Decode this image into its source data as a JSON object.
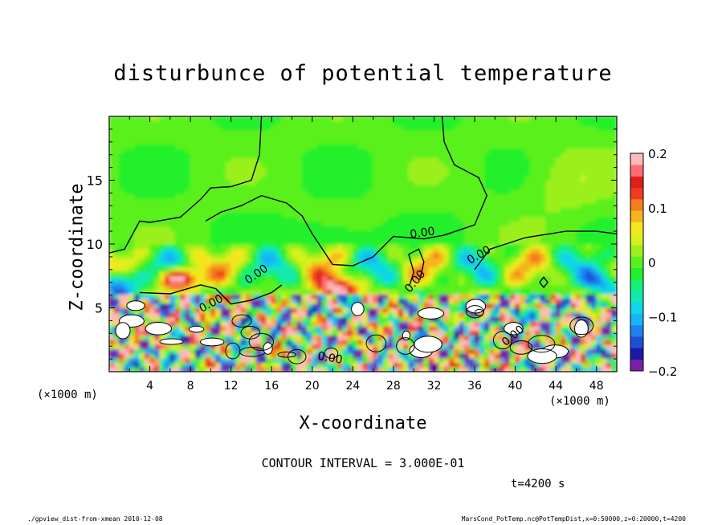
{
  "chart_data": {
    "type": "heatmap",
    "title": "disturbunce of potential temperature",
    "xlabel": "X-coordinate",
    "ylabel": "Z-coordinate",
    "x_unit": "(×1000 m)",
    "y_unit": "(×1000 m)",
    "xlim": [
      0,
      50
    ],
    "ylim": [
      0,
      20
    ],
    "x_ticks": [
      4,
      8,
      12,
      16,
      20,
      24,
      28,
      32,
      36,
      40,
      44,
      48
    ],
    "y_ticks": [
      5,
      10,
      15
    ],
    "colorbar": {
      "range": [
        -0.2,
        0.2
      ],
      "tick_labels": [
        "0.2",
        "0.1",
        "0",
        "−0.1",
        "−0.2"
      ],
      "colors": [
        "#7a1fa8",
        "#1a1aa8",
        "#1e4fd6",
        "#1e82f0",
        "#19b4f5",
        "#0fd6e8",
        "#14e8b0",
        "#14f078",
        "#22f02a",
        "#5af01e",
        "#9bf01e",
        "#d7f01e",
        "#f5e61e",
        "#f5b41e",
        "#f57d1e",
        "#f03c1e",
        "#e11e1e",
        "#ff6e6e",
        "#ffb9b9"
      ]
    },
    "contour_labels": [
      "0.00",
      "0.00",
      "0.00",
      "0.00",
      "0.00",
      "0.00",
      "0.00"
    ],
    "contour_interval_text": "CONTOUR INTERVAL = 3.000E-01",
    "time_text": "t=4200 s"
  },
  "footer": {
    "left": "./gpview_dist-from-xmean  2010-12-08",
    "right": "MarsCond_PotTemp.nc@PotTempDist,x=0:50000,z=0:20000,t=4200"
  }
}
